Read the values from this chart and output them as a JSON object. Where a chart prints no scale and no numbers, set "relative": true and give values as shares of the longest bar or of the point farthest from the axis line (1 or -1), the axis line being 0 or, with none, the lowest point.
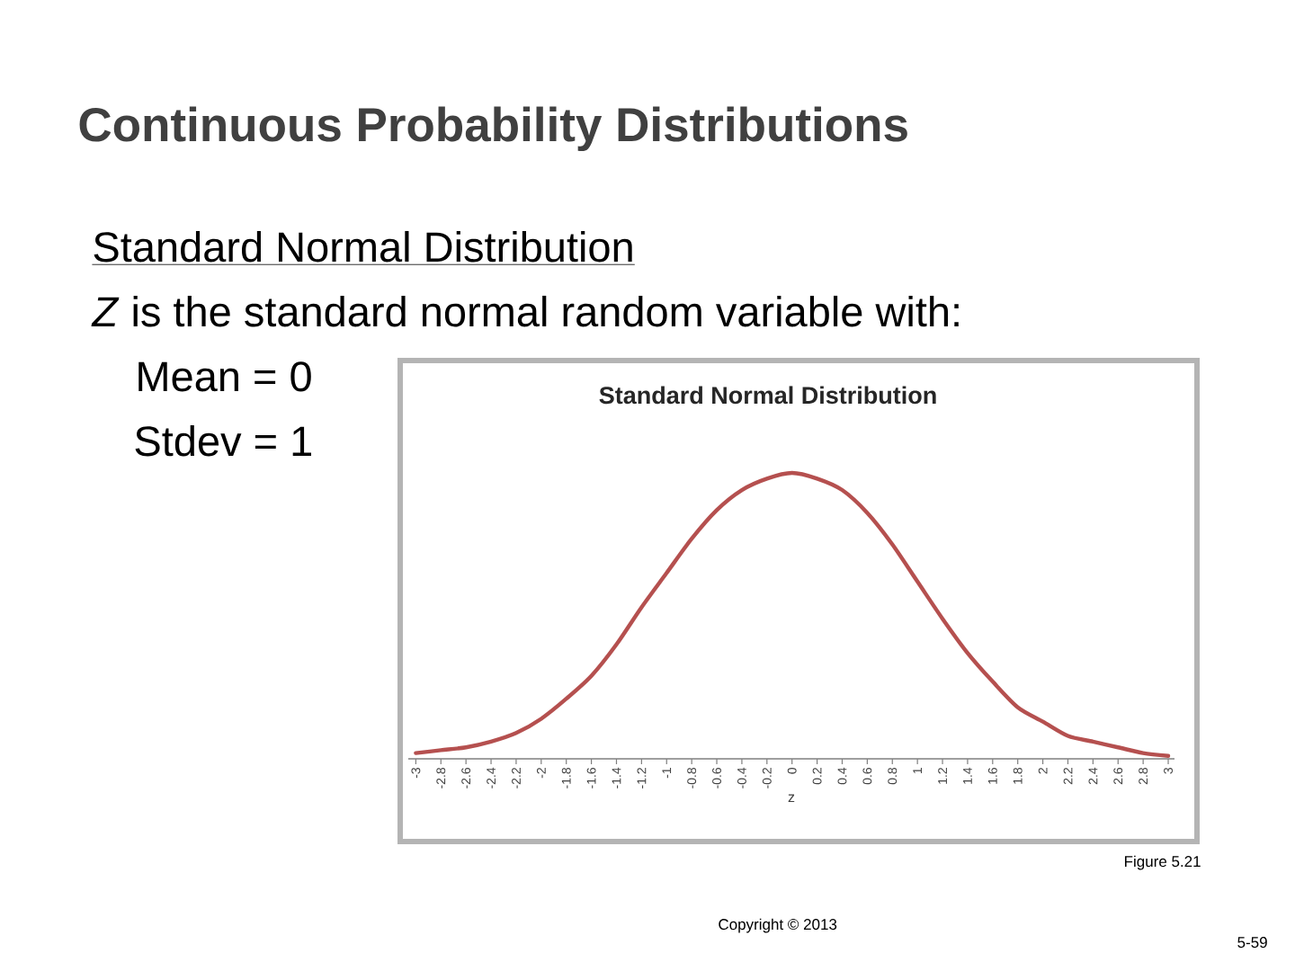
{
  "chart_data": {
    "type": "line",
    "title": "Continuous Probability Distributions",
    "subtitle": "Standard Normal Distribution",
    "xlabel": "z",
    "annotations": [
      "Standard Normal Distribution",
      "*Z* is the standard normal random variable with:",
      "Mean = 0",
      "Stdev = 1",
      "Figure 5.21",
      "Copyright © 2013",
      "5-59"
    ],
    "categories": [
      "-3",
      "-2.8",
      "-2.6",
      "-2.4",
      "-2.2",
      "-2",
      "-1.8",
      "-1.6",
      "-1.4",
      "-1.2",
      "-1",
      "-0.8",
      "-0.6",
      "-0.4",
      "-0.2",
      "0",
      "0.2",
      "0.4",
      "0.6",
      "0.8",
      "1",
      "1.2",
      "1.4",
      "1.6",
      "1.8",
      "2",
      "2.2",
      "2.4",
      "2.6",
      "2.8",
      "3"
    ],
    "values": [
      0.02,
      0.03,
      0.04,
      0.06,
      0.09,
      0.14,
      0.21,
      0.29,
      0.4,
      0.53,
      0.65,
      0.77,
      0.87,
      0.94,
      0.98,
      1,
      0.98,
      0.94,
      0.86,
      0.75,
      0.62,
      0.49,
      0.37,
      0.27,
      0.18,
      0.13,
      0.08,
      0.06,
      0.04,
      0.02,
      0.01
    ],
    "color": "#b5504f",
    "relative": true
  }
}
